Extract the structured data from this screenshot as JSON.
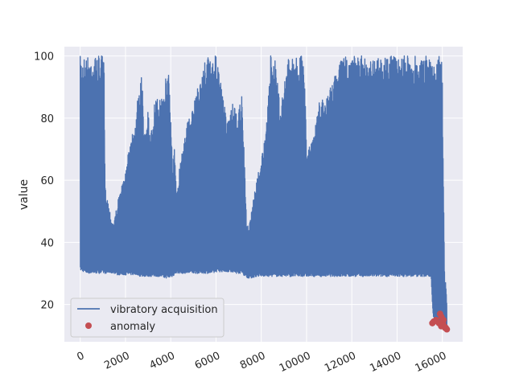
{
  "chart_data": {
    "type": "line",
    "title": "",
    "xlabel": "",
    "ylabel": "value",
    "xlim": [
      -700,
      16900
    ],
    "ylim": [
      8,
      103
    ],
    "x_ticks": [
      0,
      2000,
      4000,
      6000,
      8000,
      10000,
      12000,
      14000,
      16000
    ],
    "y_ticks": [
      20,
      40,
      60,
      80,
      100
    ],
    "x_tick_rotation": 25,
    "grid": true,
    "legend_position": "lower-left",
    "colors": {
      "background": "#eaeaf2",
      "grid": "#ffffff",
      "line": "#4c72b0",
      "anomaly": "#c44e52"
    },
    "series": [
      {
        "name": "vibratory acquisition",
        "kind": "line",
        "band_x": [
          0,
          300,
          600,
          1050,
          1100,
          1400,
          1500,
          1650,
          1900,
          2000,
          2150,
          2250,
          2350,
          2450,
          2550,
          2650,
          2700,
          2800,
          3000,
          3100,
          3200,
          3300,
          3400,
          3550,
          3700,
          3850,
          3900,
          4100,
          4150,
          4250,
          4400,
          4600,
          4800,
          5000,
          5150,
          5300,
          5400,
          5550,
          5750,
          5900,
          6000,
          6300,
          6450,
          6600,
          6700,
          6900,
          7000,
          7150,
          7350,
          7450,
          7600,
          7800,
          8000,
          8200,
          8400,
          8600,
          8800,
          9000,
          9200,
          9500,
          9900,
          10000,
          10100,
          10300,
          10600,
          10800,
          11000,
          11200,
          11400,
          11500,
          11700,
          11800,
          12000,
          12300,
          12600,
          12900,
          13200,
          13500,
          13800,
          14100,
          14400,
          14700,
          15000,
          15200,
          15300,
          15500,
          15600,
          15700,
          15800,
          15900,
          15950,
          16000,
          16050,
          16100,
          16150,
          16200
        ],
        "band_high": [
          100,
          100,
          100,
          100,
          58,
          47,
          47,
          53,
          60,
          62,
          73,
          74,
          78,
          80,
          87,
          90,
          100,
          79,
          83,
          73,
          80,
          86,
          86,
          86,
          93,
          93,
          100,
          62,
          72,
          56,
          65,
          76,
          80,
          83,
          90,
          92,
          95,
          100,
          100,
          100,
          100,
          88,
          80,
          80,
          85,
          82,
          82,
          88,
          46,
          45,
          52,
          60,
          68,
          74,
          100,
          100,
          86,
          90,
          100,
          100,
          100,
          71,
          73,
          73,
          87,
          85,
          89,
          94,
          94,
          100,
          100,
          100,
          100,
          100,
          100,
          100,
          100,
          100,
          100,
          100,
          100,
          100,
          100,
          100,
          100,
          100,
          100,
          100,
          100,
          100,
          100,
          95,
          60,
          30,
          27,
          20
        ],
        "band_low": [
          31,
          30,
          30,
          30,
          30,
          30,
          30,
          29.5,
          29.5,
          29.5,
          29.5,
          29.5,
          29.5,
          29.5,
          29.5,
          29,
          29,
          29,
          29,
          29,
          29,
          29,
          29,
          29,
          28.5,
          28.5,
          28.5,
          29,
          29.5,
          30,
          30,
          30,
          30,
          30,
          30,
          30,
          30,
          30,
          30,
          30,
          30.5,
          30.5,
          30.5,
          30.5,
          30,
          30,
          30,
          30,
          28.5,
          28.5,
          28.5,
          29,
          29,
          29,
          29,
          29,
          29,
          29,
          29,
          29,
          29,
          29,
          29,
          29,
          29,
          29,
          29,
          29,
          29,
          29,
          29,
          29,
          29,
          29,
          29,
          29,
          29,
          29,
          29,
          29,
          29,
          29,
          29,
          29,
          29,
          29,
          15,
          15,
          14,
          13,
          13,
          12,
          12,
          12,
          12,
          12
        ]
      },
      {
        "name": "anomaly",
        "kind": "scatter",
        "x": [
          15560,
          15620,
          15720,
          15900,
          15960,
          16020,
          16080,
          16120,
          16200,
          16150,
          15850,
          15950,
          16050
        ],
        "y": [
          14,
          14.5,
          15,
          17,
          16,
          14,
          13,
          12.5,
          12,
          12.5,
          14,
          13,
          15
        ]
      }
    ]
  }
}
